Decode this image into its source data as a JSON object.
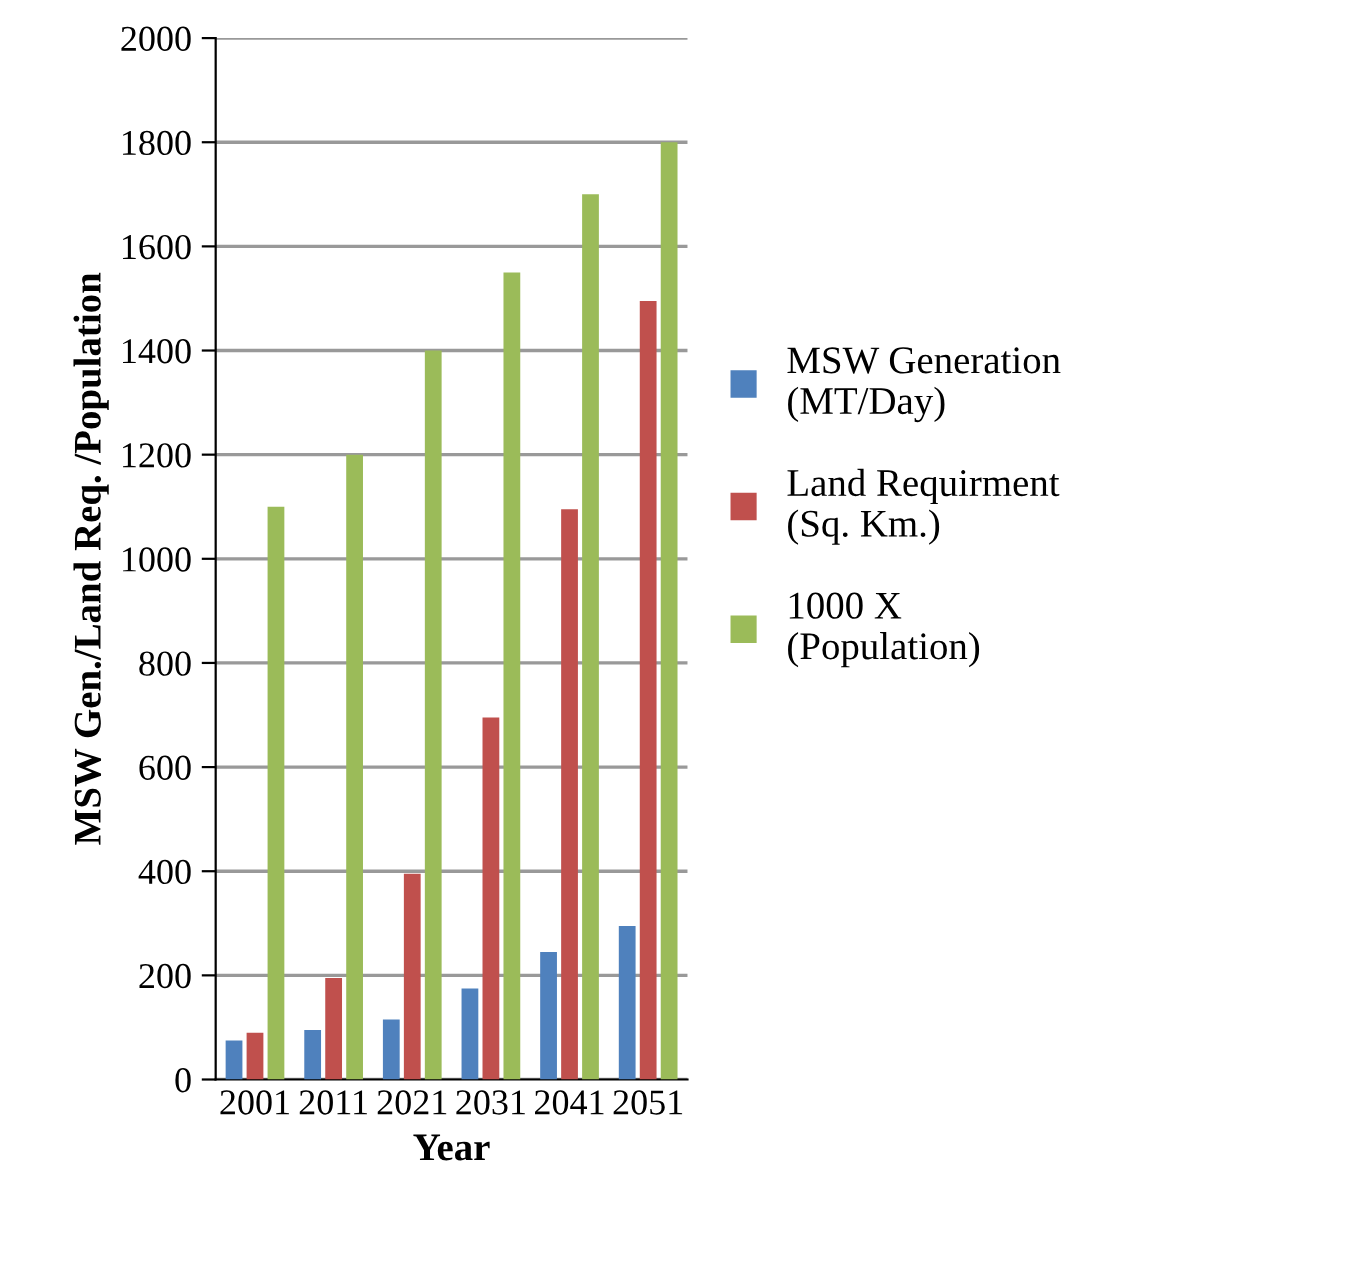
{
  "chart_data": {
    "type": "bar",
    "xlabel": "Year",
    "ylabel": "MSW Gen./Land Req. /Population",
    "categories": [
      "2001",
      "2011",
      "2021",
      "2031",
      "2041",
      "2051"
    ],
    "series": [
      {
        "name": "MSW Generation\n(MT/Day)",
        "color": "#4f81bd",
        "values": [
          75,
          95,
          115,
          175,
          245,
          295
        ]
      },
      {
        "name": "Land Requirment\n(Sq. Km.)",
        "color": "#c0504d",
        "values": [
          90,
          195,
          395,
          695,
          1095,
          1495
        ]
      },
      {
        "name": "1000 X\n(Population)",
        "color": "#9bbb59",
        "values": [
          1100,
          1200,
          1400,
          1550,
          1700,
          1800
        ]
      }
    ],
    "ylim": [
      0,
      2000
    ],
    "yticks": [
      0,
      200,
      400,
      600,
      800,
      1000,
      1200,
      1400,
      1600,
      1800,
      2000
    ],
    "grid": "y",
    "legend": "right"
  }
}
